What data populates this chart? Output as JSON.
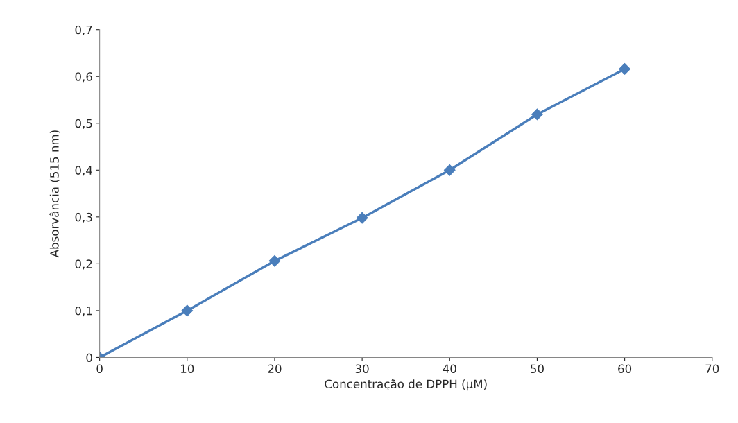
{
  "chart_data": {
    "type": "line",
    "xlabel": "Concentração de DPPH (µM)",
    "ylabel": "Absorvância (515 nm)",
    "x": [
      0,
      10,
      20,
      30,
      40,
      50,
      60
    ],
    "series": [
      {
        "color": "#4a7ebb",
        "values": [
          0,
          0.1,
          0.206,
          0.298,
          0.4,
          0.519,
          0.616
        ]
      }
    ],
    "xlim": [
      0,
      70
    ],
    "xticks": [
      0,
      10,
      20,
      30,
      40,
      50,
      60,
      70
    ],
    "ylim": [
      0,
      0.7
    ],
    "yticks": [
      0,
      {
        "value": 0.1,
        "label": "0,1"
      },
      {
        "value": 0.2,
        "label": "0,2"
      },
      {
        "value": 0.3,
        "label": "0,3"
      },
      {
        "value": 0.4,
        "label": "0,4"
      },
      {
        "value": 0.5,
        "label": "0,5"
      },
      {
        "value": 0.6,
        "label": "0,6"
      },
      {
        "value": 0.7,
        "label": "0,7"
      }
    ],
    "grid": false,
    "legend": false,
    "marker": "diamond",
    "line_style": "solid"
  }
}
